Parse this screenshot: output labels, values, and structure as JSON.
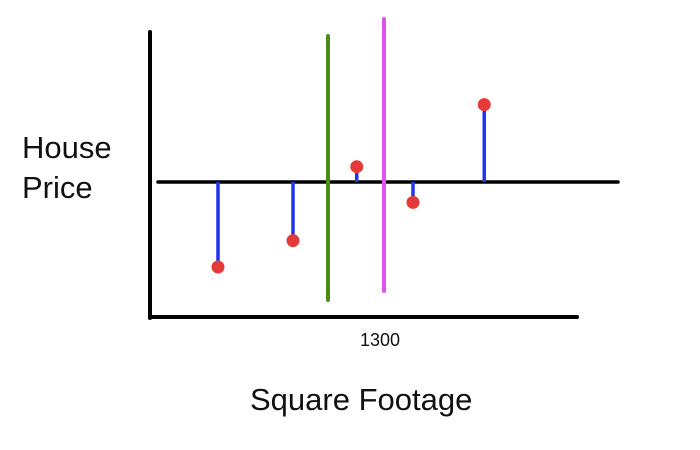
{
  "labels": {
    "y_line1": "House",
    "y_line2": "Price",
    "x_tick": "1300",
    "x_axis": "Square Footage"
  },
  "colors": {
    "axis": "#000000",
    "baseline": "#000000",
    "residual": "#2233ee",
    "point": "#e53a3a",
    "green_line": "#4c8c1a",
    "magenta_line": "#e052f0"
  },
  "points": [
    {
      "x": 1,
      "y": -1
    },
    {
      "x": 2,
      "y": -0.69
    },
    {
      "x": 2.85,
      "y": 0.18
    },
    {
      "x": 3.6,
      "y": -0.24
    },
    {
      "x": 4.55,
      "y": 0.91
    }
  ]
}
